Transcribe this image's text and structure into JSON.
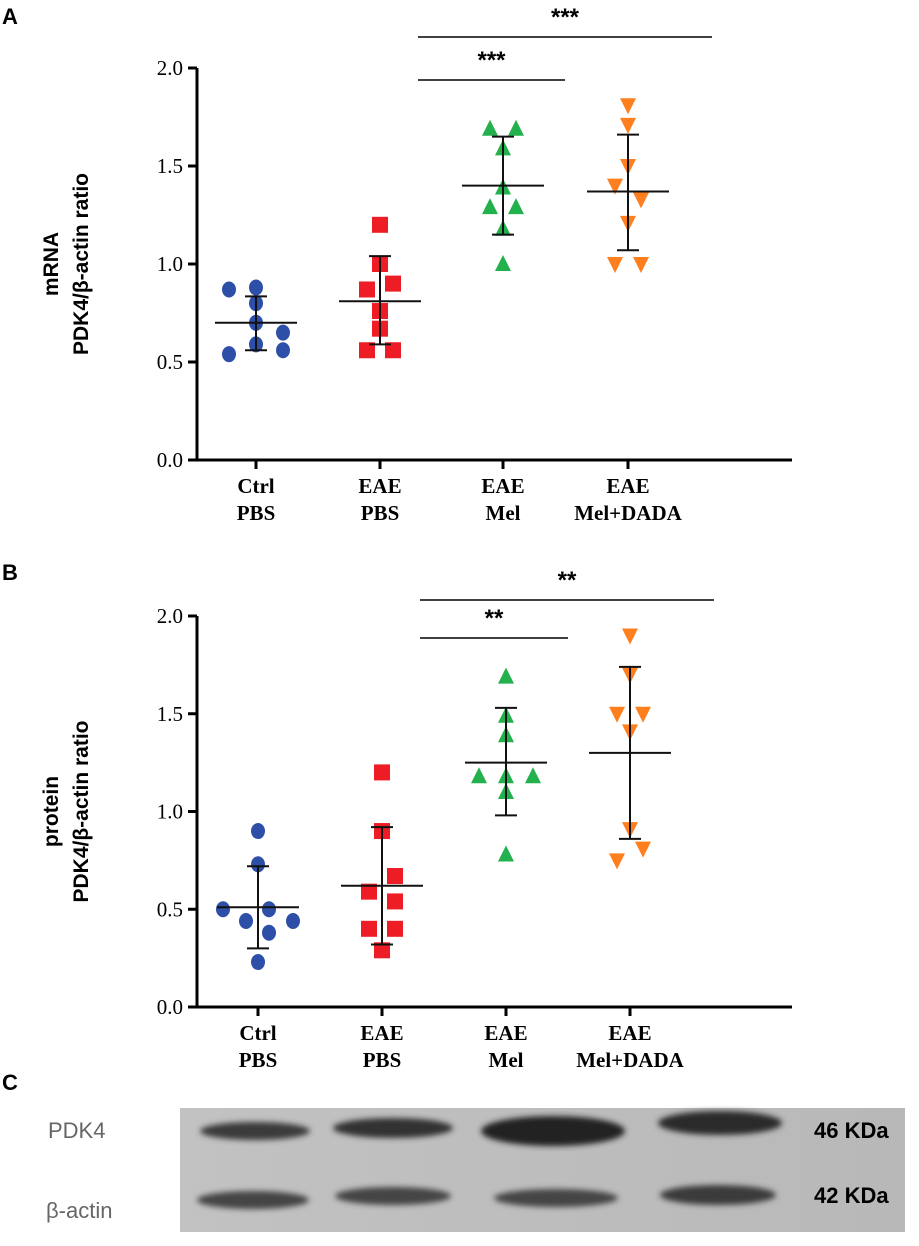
{
  "colors": {
    "ctrl": "#2e4fa8",
    "eae_pbs": "#ee1c25",
    "eae_mel": "#22b14c",
    "eae_mel_dada": "#ff7f1e"
  },
  "chart_data": [
    {
      "panel": "A",
      "type": "scatter",
      "ylabel_line1": "mRNA",
      "ylabel_line2": "PDK4/β-actin ratio",
      "ylim": [
        0,
        2.0
      ],
      "yticks": [
        "0.0",
        "0.5",
        "1.0",
        "1.5",
        "2.0"
      ],
      "categories": [
        {
          "line1": "Ctrl",
          "line2": "PBS"
        },
        {
          "line1": "EAE",
          "line2": "PBS"
        },
        {
          "line1": "EAE",
          "line2": "Mel"
        },
        {
          "line1": "EAE",
          "line2": "Mel+DADA"
        }
      ],
      "series": [
        {
          "name": "Ctrl PBS",
          "marker": "circle",
          "values": [
            0.87,
            0.88,
            0.8,
            0.7,
            0.65,
            0.59,
            0.56,
            0.54
          ],
          "mean": 0.7,
          "sd_high": 0.835,
          "sd_low": 0.56
        },
        {
          "name": "EAE PBS",
          "marker": "square",
          "values": [
            1.2,
            1.0,
            0.9,
            0.87,
            0.76,
            0.67,
            0.56,
            0.56
          ],
          "mean": 0.81,
          "sd_high": 1.04,
          "sd_low": 0.59
        },
        {
          "name": "EAE Mel",
          "marker": "triangle-up",
          "values": [
            1.69,
            1.69,
            1.59,
            1.39,
            1.29,
            1.29,
            1.18,
            1.0
          ],
          "mean": 1.4,
          "sd_high": 1.65,
          "sd_low": 1.15
        },
        {
          "name": "EAE Mel+DADA",
          "marker": "triangle-down",
          "values": [
            1.81,
            1.71,
            1.5,
            1.4,
            1.33,
            1.21,
            1.0,
            1.0
          ],
          "mean": 1.37,
          "sd_high": 1.66,
          "sd_low": 1.07
        }
      ],
      "significance": [
        {
          "from": 1,
          "to": 3,
          "label": "***"
        },
        {
          "from": 1,
          "to": 2,
          "label": "***"
        }
      ]
    },
    {
      "panel": "B",
      "type": "scatter",
      "ylabel_line1": "protein",
      "ylabel_line2": "PDK4/β-actin ratio",
      "ylim": [
        0,
        2.0
      ],
      "yticks": [
        "0.0",
        "0.5",
        "1.0",
        "1.5",
        "2.0"
      ],
      "categories": [
        {
          "line1": "Ctrl",
          "line2": "PBS"
        },
        {
          "line1": "EAE",
          "line2": "PBS"
        },
        {
          "line1": "EAE",
          "line2": "Mel"
        },
        {
          "line1": "EAE",
          "line2": "Mel+DADA"
        }
      ],
      "series": [
        {
          "name": "Ctrl PBS",
          "marker": "circle",
          "values": [
            0.9,
            0.73,
            0.5,
            0.5,
            0.44,
            0.44,
            0.38,
            0.23
          ],
          "mean": 0.51,
          "sd_high": 0.72,
          "sd_low": 0.3
        },
        {
          "name": "EAE PBS",
          "marker": "square",
          "values": [
            1.2,
            0.9,
            0.67,
            0.59,
            0.54,
            0.4,
            0.4,
            0.29
          ],
          "mean": 0.62,
          "sd_high": 0.92,
          "sd_low": 0.32
        },
        {
          "name": "EAE Mel",
          "marker": "triangle-up",
          "values": [
            1.69,
            1.49,
            1.39,
            1.18,
            1.18,
            1.18,
            1.1,
            0.78
          ],
          "mean": 1.25,
          "sd_high": 1.53,
          "sd_low": 0.98
        },
        {
          "name": "EAE Mel+DADA",
          "marker": "triangle-down",
          "values": [
            1.9,
            1.7,
            1.5,
            1.5,
            1.41,
            0.91,
            0.81,
            0.75
          ],
          "mean": 1.3,
          "sd_high": 1.74,
          "sd_low": 0.86
        }
      ],
      "significance": [
        {
          "from": 1,
          "to": 3,
          "label": "**"
        },
        {
          "from": 1,
          "to": 2,
          "label": "**"
        }
      ]
    }
  ],
  "panel_c": {
    "letter": "C",
    "rows": [
      {
        "label": "PDK4",
        "size": "46 KDa"
      },
      {
        "label": "β-actin",
        "size": "42 KDa"
      }
    ]
  }
}
